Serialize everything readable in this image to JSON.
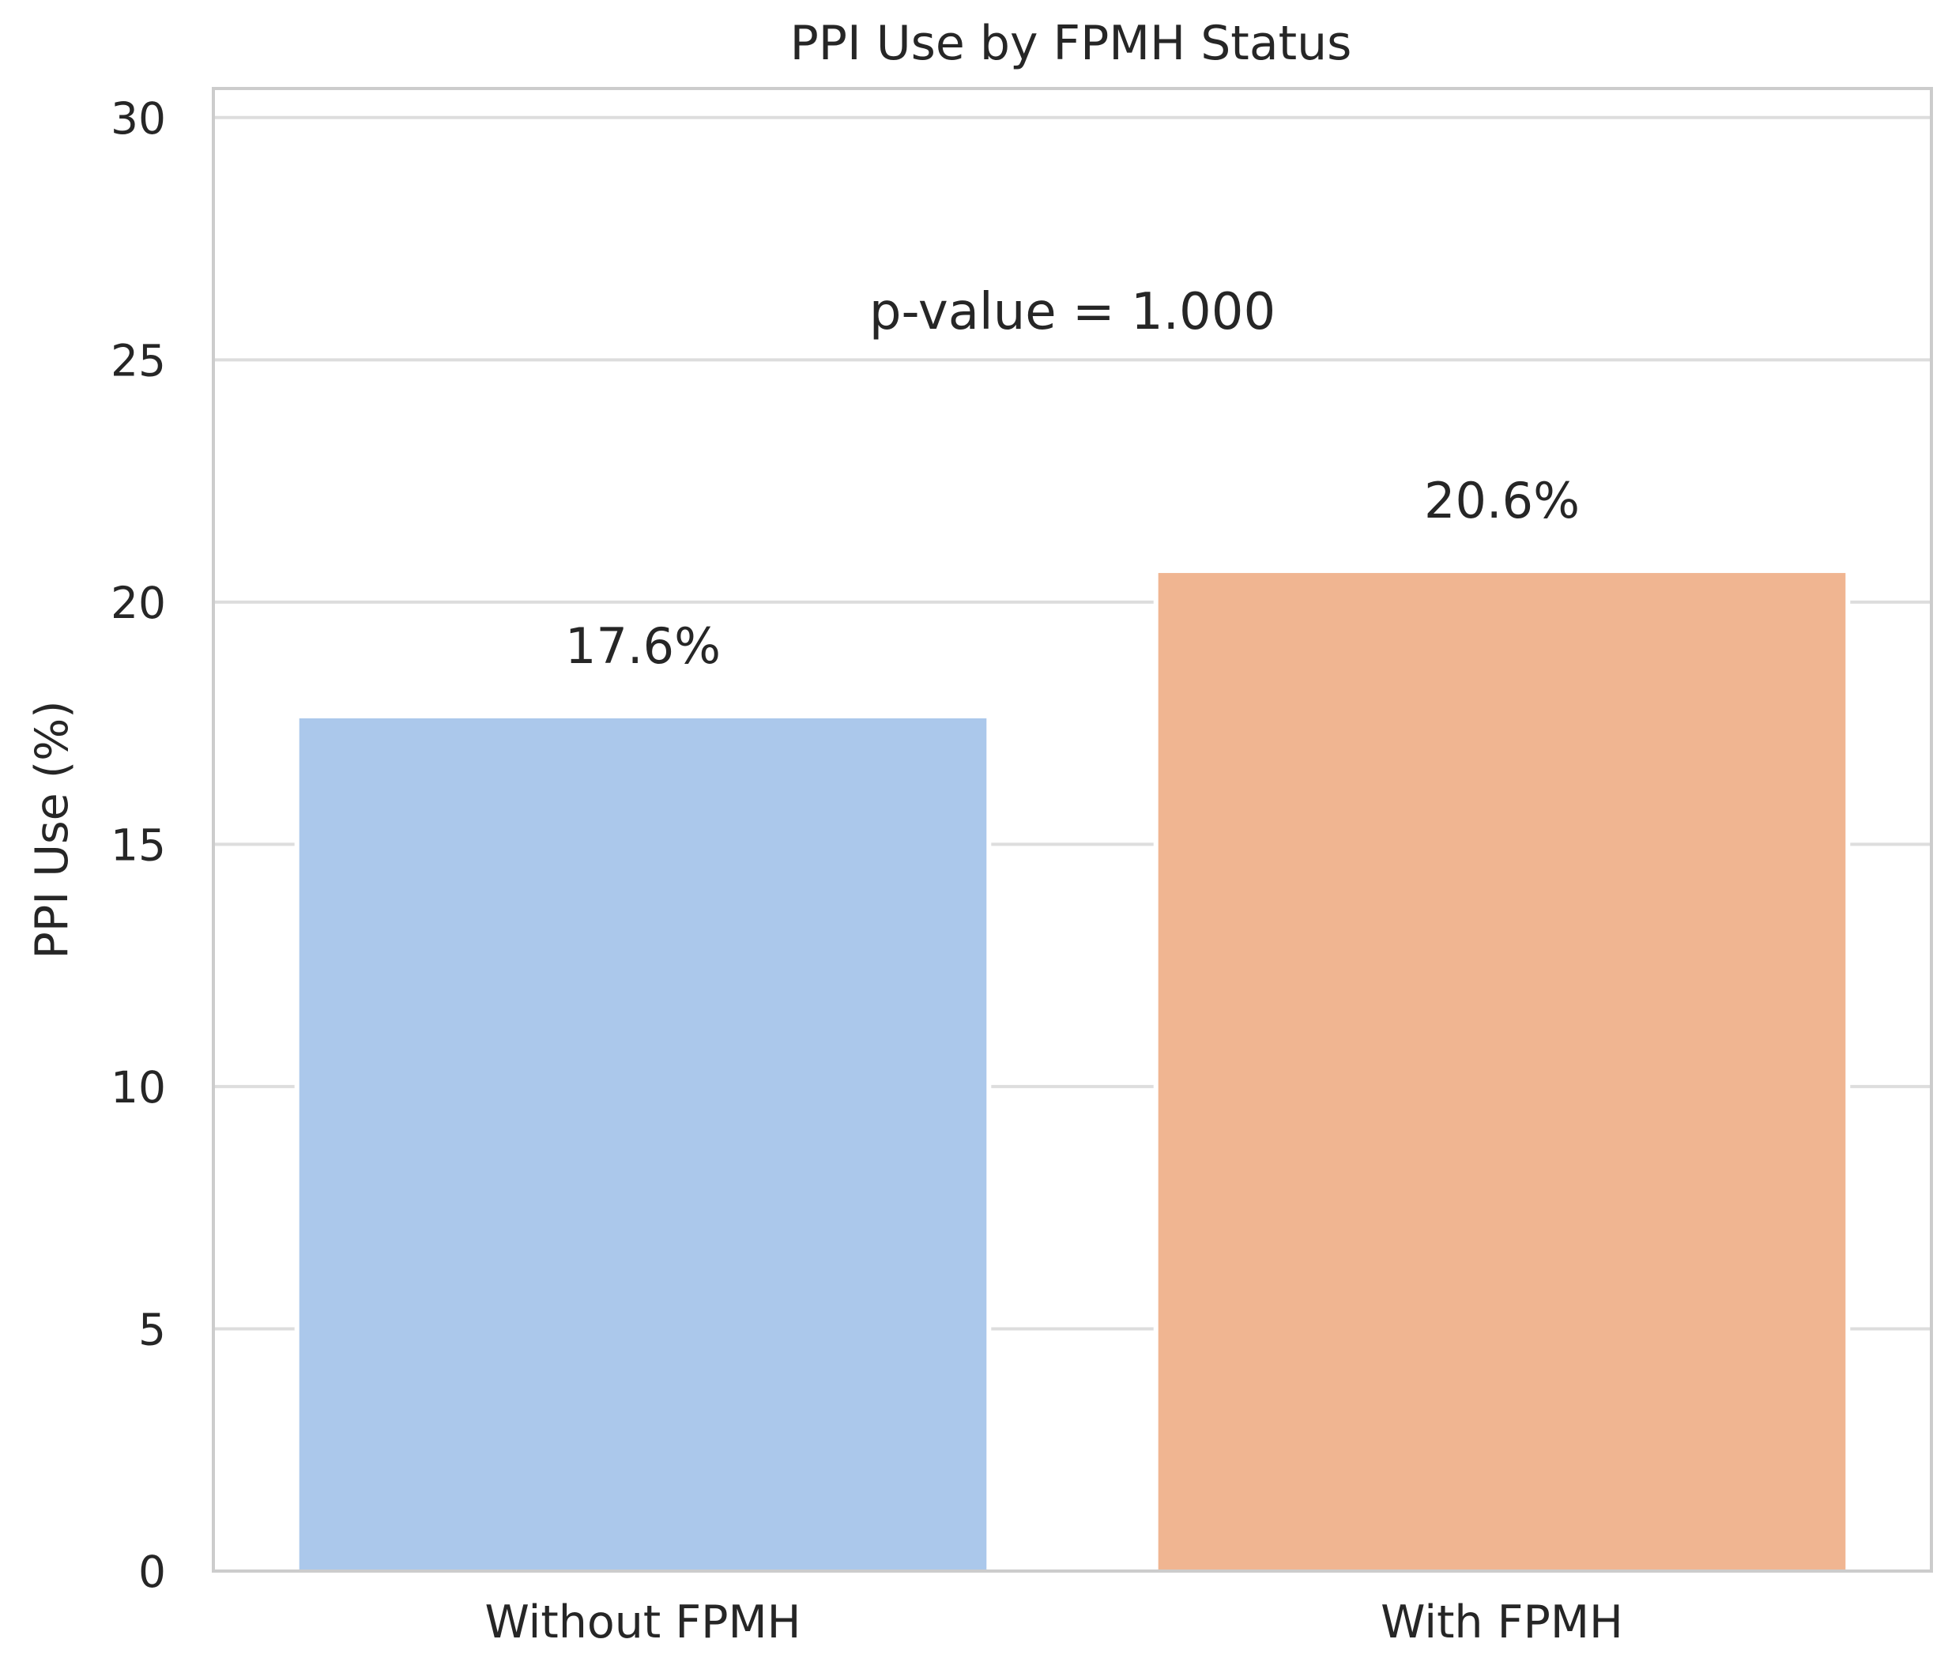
{
  "chart_data": {
    "type": "bar",
    "title": "PPI Use by FPMH Status",
    "xlabel": "",
    "ylabel": "PPI Use (%)",
    "categories": [
      "Without FPMH",
      "With FPMH"
    ],
    "values": [
      17.6,
      20.6
    ],
    "value_labels": [
      "17.6%",
      "20.6%"
    ],
    "colors": [
      "#abc8eb",
      "#f0b591"
    ],
    "ylim": [
      0,
      30.6
    ],
    "yticks": [
      0,
      5,
      10,
      15,
      20,
      25,
      30
    ],
    "grid": true,
    "annotation": "p-value = 1.000",
    "annotation_y": 26
  }
}
